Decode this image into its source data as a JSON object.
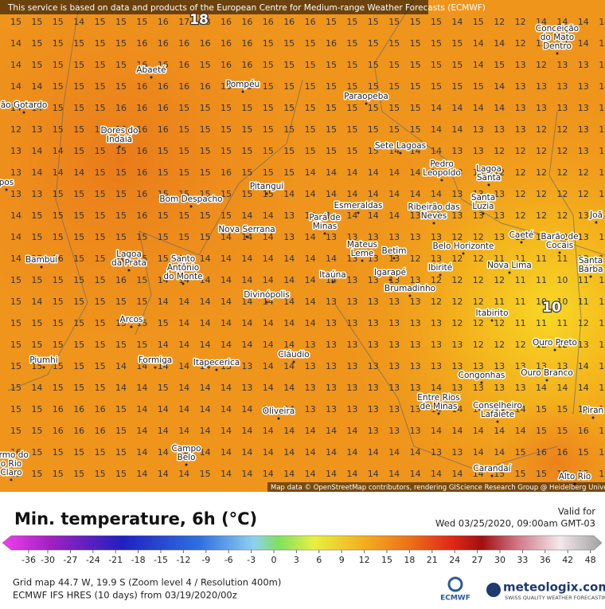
{
  "header": {
    "notice": "This service is based on data and products of the European Centre for Medium-range Weather Forecasts (ECMWF)",
    "attribution": "Map data © OpenStreetMap contributors, rendering GIScience Research Group @ Heidelberg University"
  },
  "map": {
    "extremes": [
      {
        "label": "18"
      },
      {
        "label": "10"
      }
    ],
    "grid": [
      [
        15,
        15,
        15,
        14,
        15,
        15,
        15,
        16,
        17,
        18,
        16,
        16,
        16,
        16,
        16,
        15,
        15,
        15,
        15,
        15,
        15,
        14,
        15,
        12,
        12,
        14,
        14,
        14,
        14
      ],
      [
        14,
        15,
        15,
        15,
        15,
        15,
        16,
        16,
        16,
        16,
        16,
        16,
        15,
        15,
        15,
        16,
        15,
        15,
        15,
        15,
        15,
        15,
        14,
        14,
        12,
        12,
        12,
        14,
        14
      ],
      [
        14,
        15,
        15,
        15,
        15,
        15,
        16,
        16,
        16,
        15,
        16,
        16,
        15,
        15,
        15,
        15,
        15,
        15,
        15,
        15,
        15,
        15,
        14,
        15,
        13,
        12,
        13,
        13,
        14
      ],
      [
        14,
        14,
        15,
        15,
        15,
        15,
        16,
        16,
        16,
        16,
        16,
        15,
        15,
        15,
        15,
        15,
        15,
        15,
        15,
        15,
        15,
        15,
        15,
        14,
        13,
        13,
        13,
        13,
        14
      ],
      [
        14,
        14,
        15,
        15,
        15,
        16,
        16,
        16,
        15,
        15,
        15,
        15,
        15,
        15,
        15,
        15,
        15,
        15,
        15,
        15,
        14,
        14,
        14,
        14,
        13,
        13,
        13,
        13,
        13
      ],
      [
        12,
        13,
        15,
        15,
        15,
        16,
        16,
        16,
        15,
        15,
        15,
        15,
        15,
        15,
        15,
        15,
        15,
        15,
        15,
        15,
        14,
        14,
        13,
        13,
        13,
        12,
        12,
        13,
        13
      ],
      [
        13,
        14,
        14,
        15,
        15,
        15,
        16,
        15,
        15,
        15,
        15,
        15,
        15,
        15,
        15,
        15,
        15,
        15,
        14,
        14,
        14,
        13,
        13,
        12,
        12,
        12,
        12,
        13,
        13
      ],
      [
        13,
        14,
        14,
        14,
        15,
        15,
        16,
        15,
        15,
        15,
        16,
        15,
        15,
        15,
        14,
        14,
        14,
        14,
        14,
        14,
        14,
        13,
        13,
        12,
        12,
        12,
        12,
        12,
        13
      ],
      [
        13,
        13,
        15,
        15,
        15,
        15,
        16,
        15,
        15,
        15,
        15,
        15,
        15,
        14,
        14,
        14,
        14,
        14,
        14,
        14,
        14,
        13,
        13,
        13,
        12,
        12,
        12,
        12,
        14
      ],
      [
        14,
        15,
        15,
        15,
        15,
        15,
        16,
        15,
        15,
        15,
        15,
        14,
        14,
        13,
        14,
        14,
        14,
        14,
        14,
        13,
        13,
        13,
        13,
        13,
        12,
        12,
        12,
        13,
        14
      ],
      [
        14,
        15,
        15,
        15,
        15,
        15,
        15,
        15,
        15,
        15,
        14,
        14,
        14,
        13,
        14,
        13,
        13,
        13,
        13,
        13,
        13,
        12,
        12,
        13,
        13,
        12,
        12,
        13,
        13
      ],
      [
        14,
        15,
        16,
        15,
        15,
        16,
        15,
        15,
        14,
        14,
        14,
        14,
        14,
        14,
        14,
        14,
        13,
        13,
        13,
        12,
        13,
        12,
        12,
        11,
        11,
        11,
        11,
        12,
        13
      ],
      [
        15,
        15,
        15,
        15,
        15,
        16,
        15,
        14,
        14,
        14,
        14,
        14,
        14,
        14,
        14,
        14,
        13,
        13,
        13,
        13,
        12,
        12,
        12,
        12,
        11,
        11,
        10,
        11,
        13
      ],
      [
        15,
        14,
        15,
        15,
        15,
        15,
        15,
        14,
        14,
        14,
        14,
        14,
        14,
        14,
        14,
        13,
        13,
        13,
        13,
        13,
        12,
        12,
        12,
        11,
        11,
        10,
        10,
        11,
        13
      ],
      [
        15,
        15,
        15,
        15,
        15,
        15,
        15,
        15,
        14,
        14,
        14,
        14,
        14,
        14,
        14,
        13,
        13,
        13,
        13,
        13,
        13,
        12,
        12,
        12,
        11,
        11,
        11,
        12,
        13
      ],
      [
        15,
        15,
        15,
        15,
        15,
        15,
        15,
        14,
        14,
        14,
        14,
        14,
        14,
        14,
        13,
        13,
        13,
        13,
        13,
        13,
        13,
        13,
        12,
        12,
        12,
        12,
        12,
        13,
        14
      ],
      [
        15,
        15,
        15,
        15,
        15,
        14,
        14,
        14,
        14,
        14,
        13,
        13,
        14,
        14,
        13,
        13,
        13,
        13,
        13,
        13,
        13,
        13,
        13,
        13,
        13,
        13,
        13,
        14,
        14
      ],
      [
        15,
        14,
        15,
        15,
        15,
        14,
        14,
        15,
        14,
        14,
        14,
        13,
        14,
        14,
        13,
        13,
        13,
        13,
        13,
        13,
        14,
        13,
        13,
        13,
        13,
        14,
        14,
        14,
        15
      ],
      [
        15,
        15,
        16,
        16,
        16,
        15,
        14,
        14,
        14,
        14,
        14,
        14,
        14,
        14,
        13,
        13,
        13,
        13,
        13,
        13,
        14,
        14,
        14,
        14,
        14,
        15,
        15,
        15,
        15
      ],
      [
        15,
        15,
        16,
        16,
        16,
        15,
        14,
        14,
        14,
        14,
        14,
        14,
        14,
        14,
        14,
        14,
        14,
        13,
        13,
        13,
        14,
        14,
        14,
        14,
        14,
        15,
        15,
        16,
        15
      ],
      [
        16,
        15,
        15,
        15,
        15,
        15,
        14,
        14,
        14,
        14,
        14,
        14,
        14,
        14,
        14,
        14,
        14,
        14,
        14,
        14,
        13,
        13,
        14,
        14,
        15,
        16,
        16,
        15,
        15
      ],
      [
        15,
        15,
        15,
        15,
        15,
        15,
        14,
        14,
        14,
        15,
        14,
        14,
        14,
        14,
        14,
        14,
        14,
        14,
        14,
        14,
        14,
        14,
        14,
        15,
        15,
        15,
        16,
        15,
        15
      ]
    ],
    "towns": [
      [
        "ão Gotardo"
      ],
      [
        "Abaeté"
      ],
      [
        "Pompéu"
      ],
      [
        "Paraopeba"
      ],
      [
        "Dores do",
        "Indaiá"
      ],
      [
        "Sete Lagoas"
      ],
      [
        "Pedro",
        "Leopoldo"
      ],
      [
        "Lagoa",
        "Santa"
      ],
      [
        "Bom Despacho"
      ],
      [
        "Pitangui"
      ],
      [
        "Esmeraldas"
      ],
      [
        "Ribeirão das",
        "Neves"
      ],
      [
        "Santa",
        "Luzia"
      ],
      [
        "Pará de",
        "Minas"
      ],
      [
        "Nova Serrana"
      ],
      [
        "Caeté"
      ],
      [
        "Barão de",
        "Cocais"
      ],
      [
        "Bambuí"
      ],
      [
        "Lagoa",
        "da Prata"
      ],
      [
        "Santo",
        "Antônio",
        "do Monte"
      ],
      [
        "Mateus",
        "Leme"
      ],
      [
        "Betim"
      ],
      [
        "Belo Horizonte"
      ],
      [
        "Nova Lima"
      ],
      [
        "Santa",
        "Bárba"
      ],
      [
        "Itaúna"
      ],
      [
        "Igarapé"
      ],
      [
        "Ibirité"
      ],
      [
        "Brumadinho"
      ],
      [
        "Divinópolis"
      ],
      [
        "Itabirito"
      ],
      [
        "Arcos"
      ],
      [
        "Ouro Preto"
      ],
      [
        "Piumhi"
      ],
      [
        "Formiga"
      ],
      [
        "Itapecerica"
      ],
      [
        "Cláudio"
      ],
      [
        "Congonhas"
      ],
      [
        "Ouro Branco"
      ],
      [
        "Entre Rios",
        "de Minas"
      ],
      [
        "Conselheiro",
        "Lafaiete"
      ],
      [
        "Oliveira"
      ],
      [
        "Campo",
        "Belo"
      ],
      [
        "Carandaí"
      ],
      [
        "Alto Rio"
      ],
      [
        "Piran"
      ],
      [
        "armo do",
        "o Rio",
        "Claro"
      ],
      [
        "Conceição",
        "do Mato",
        "Dentro"
      ],
      [
        "Joã"
      ],
      [
        "pos"
      ]
    ]
  },
  "legend": {
    "title": "Min. temperature, 6h (°C)",
    "valid_label": "Valid for",
    "valid_time": "Wed 03/25/2020, 09:00am GMT-03",
    "ticks": [
      -36,
      -30,
      -27,
      -24,
      -21,
      -18,
      -15,
      -12,
      -9,
      -6,
      -3,
      0,
      3,
      6,
      9,
      12,
      15,
      18,
      21,
      24,
      27,
      30,
      33,
      36,
      42,
      48
    ]
  },
  "footer": {
    "grid_info": "Grid map 44.7 W, 19.9 S (Zoom level 4 / Resolution 400m)",
    "model": "ECMWF IFS HRES (10 days) from 03/19/2020/00z",
    "ecmwf": "ECMWF",
    "brand": "meteologix.com",
    "tagline": "SWISS QUALITY WEATHER FORECASTING"
  }
}
